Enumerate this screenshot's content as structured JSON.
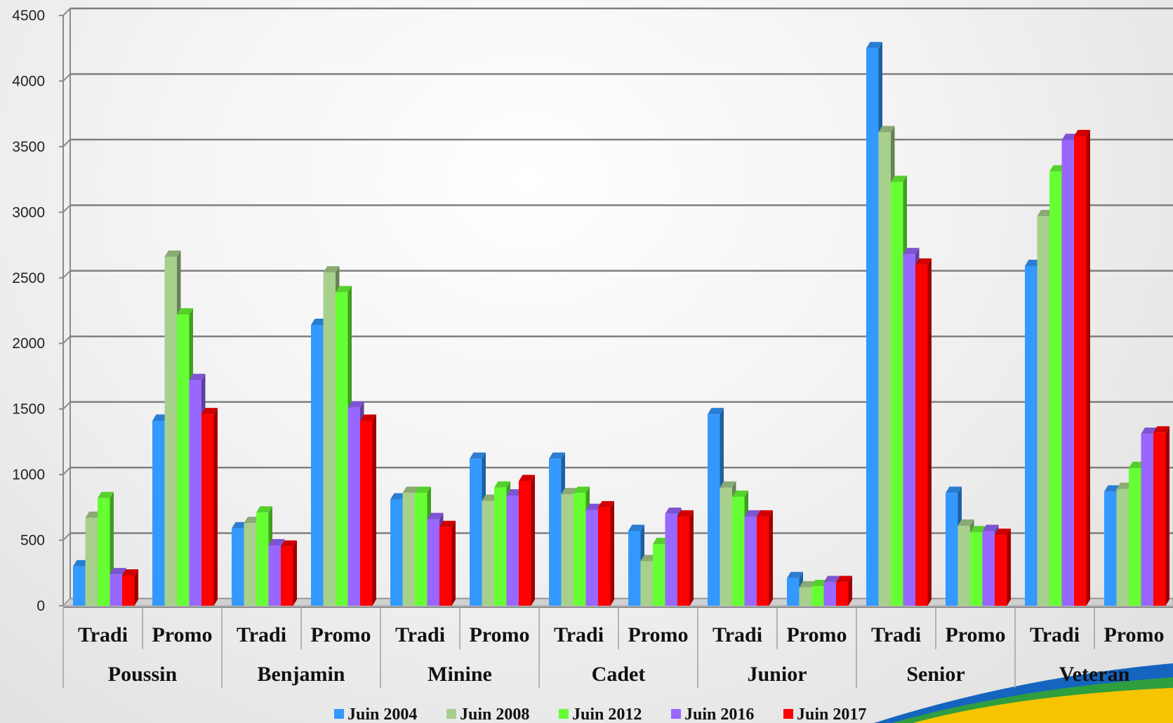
{
  "chart_data": {
    "type": "bar",
    "ylim": [
      0,
      4500
    ],
    "yticks": [
      0,
      500,
      1000,
      1500,
      2000,
      2500,
      3000,
      3500,
      4000,
      4500
    ],
    "grid": true,
    "legend_position": "bottom",
    "groups": [
      "Poussin",
      "Benjamin",
      "Minine",
      "Cadet",
      "Junior",
      "Senior",
      "Veteran"
    ],
    "subgroups": [
      "Tradi",
      "Promo"
    ],
    "categories": [
      "Poussin Tradi",
      "Poussin Promo",
      "Benjamin Tradi",
      "Benjamin Promo",
      "Minine Tradi",
      "Minine Promo",
      "Cadet Tradi",
      "Cadet Promo",
      "Junior Tradi",
      "Junior Promo",
      "Senior Tradi",
      "Senior Promo",
      "Veteran Tradi",
      "Veteran Promo"
    ],
    "series": [
      {
        "name": "Juin 2004",
        "color": "#3399ff",
        "values": [
          300,
          1410,
          590,
          2140,
          810,
          1120,
          1120,
          570,
          1460,
          210,
          4250,
          860,
          2590,
          870
        ]
      },
      {
        "name": "Juin 2008",
        "color": "#a8d08d",
        "values": [
          670,
          2660,
          630,
          2540,
          860,
          800,
          850,
          340,
          900,
          140,
          3610,
          610,
          2970,
          890
        ]
      },
      {
        "name": "Juin 2012",
        "color": "#66ff33",
        "values": [
          820,
          2220,
          710,
          2390,
          860,
          900,
          860,
          470,
          830,
          150,
          3230,
          560,
          3310,
          1050
        ]
      },
      {
        "name": "Juin 2016",
        "color": "#9966ff",
        "values": [
          240,
          1720,
          460,
          1510,
          660,
          840,
          730,
          700,
          680,
          180,
          2680,
          570,
          3550,
          1310
        ]
      },
      {
        "name": "Juin 2017",
        "color": "#ff0000",
        "values": [
          230,
          1460,
          450,
          1410,
          600,
          950,
          750,
          680,
          680,
          180,
          2600,
          540,
          3580,
          1320
        ]
      }
    ]
  }
}
